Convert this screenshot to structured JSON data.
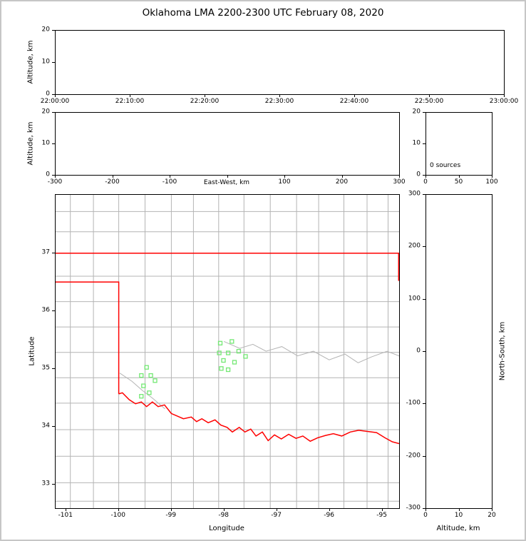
{
  "chart_data": {
    "type": "scatter",
    "title": "Oklahoma LMA 2200-2300 UTC February 08, 2020",
    "legend": "none",
    "grid": false,
    "panels": {
      "time_height": {
        "ylabel": "Altitude, km",
        "ylim": [
          0,
          20
        ],
        "yticks": [
          {
            "v": 0,
            "l": "0"
          },
          {
            "v": 10,
            "l": "10"
          },
          {
            "v": 20,
            "l": "20"
          }
        ],
        "xlim": [
          0,
          3600
        ],
        "xticks": [
          {
            "v": 0,
            "l": "22:00:00"
          },
          {
            "v": 600,
            "l": "22:10:00"
          },
          {
            "v": 1200,
            "l": "22:20:00"
          },
          {
            "v": 1800,
            "l": "22:30:00"
          },
          {
            "v": 2400,
            "l": "22:40:00"
          },
          {
            "v": 3000,
            "l": "22:50:00"
          },
          {
            "v": 3600,
            "l": "23:00:00"
          }
        ],
        "points": []
      },
      "ew_height": {
        "ylabel": "Altitude, km",
        "ylim": [
          0,
          20
        ],
        "yticks": [
          {
            "v": 0,
            "l": "0"
          },
          {
            "v": 10,
            "l": "10"
          },
          {
            "v": 20,
            "l": "20"
          }
        ],
        "xlabel": "East-West, km",
        "xlim": [
          -300,
          300
        ],
        "xticks": [
          {
            "v": -300,
            "l": "-300"
          },
          {
            "v": -200,
            "l": "-200"
          },
          {
            "v": -100,
            "l": "-100"
          },
          {
            "v": 0,
            "l": ""
          },
          {
            "v": 100,
            "l": "100"
          },
          {
            "v": 200,
            "l": "200"
          },
          {
            "v": 300,
            "l": "300"
          }
        ],
        "points": []
      },
      "sources": {
        "annotation": "0 sources",
        "xlim": [
          0,
          100
        ],
        "xticks": [
          {
            "v": 0,
            "l": "0"
          },
          {
            "v": 50,
            "l": "50"
          },
          {
            "v": 100,
            "l": "100"
          }
        ],
        "ylim": [
          0,
          20
        ],
        "yticks": [
          {
            "v": 0,
            "l": "0"
          },
          {
            "v": 10,
            "l": "10"
          },
          {
            "v": 20,
            "l": "20"
          }
        ],
        "points": []
      },
      "map": {
        "xlabel": "Longitude",
        "ylabel": "Latitude",
        "xlim": [
          -101.2,
          -94.67
        ],
        "ylim": [
          32.58,
          38.01
        ],
        "xticks": [
          {
            "v": -101,
            "l": "-101"
          },
          {
            "v": -100,
            "l": "-100"
          },
          {
            "v": -99,
            "l": "-99"
          },
          {
            "v": -98,
            "l": "-98"
          },
          {
            "v": -97,
            "l": "-97"
          },
          {
            "v": -96,
            "l": "-96"
          },
          {
            "v": -95,
            "l": "-95"
          }
        ],
        "yticks": [
          {
            "v": 33,
            "l": "33"
          },
          {
            "v": 34,
            "l": "34"
          },
          {
            "v": 35,
            "l": "35"
          },
          {
            "v": 36,
            "l": "36"
          },
          {
            "v": 37,
            "l": "37"
          }
        ],
        "county_color": "#b4b4b4",
        "state_border_color": "#ff0000",
        "station_color": "#74e874",
        "county_lon_lines": [
          -100.92,
          -100.48,
          -100.0,
          -99.5,
          -99.0,
          -98.58,
          -98.1,
          -97.62,
          -97.12,
          -96.62,
          -96.2,
          -95.72,
          -95.28,
          -94.88
        ],
        "county_lat_lines": [
          37.72,
          37.37,
          36.6,
          36.16,
          35.72,
          35.28,
          34.84,
          34.4,
          33.94,
          33.48,
          33.02,
          32.7
        ],
        "gray_polylines": [
          [
            [
              -98.0,
              35.47
            ],
            [
              -97.7,
              35.35
            ],
            [
              -97.45,
              35.42
            ],
            [
              -97.2,
              35.3
            ],
            [
              -96.9,
              35.38
            ],
            [
              -96.6,
              35.22
            ],
            [
              -96.3,
              35.3
            ],
            [
              -96.0,
              35.15
            ],
            [
              -95.7,
              35.25
            ],
            [
              -95.45,
              35.1
            ],
            [
              -95.2,
              35.2
            ],
            [
              -94.9,
              35.3
            ],
            [
              -94.67,
              35.22
            ]
          ],
          [
            [
              -99.98,
              34.92
            ],
            [
              -99.75,
              34.78
            ],
            [
              -99.55,
              34.62
            ],
            [
              -99.35,
              34.48
            ],
            [
              -99.12,
              34.3
            ]
          ]
        ],
        "border_polylines": [
          [
            [
              -101.2,
              37.0
            ],
            [
              -94.67,
              37.0
            ]
          ],
          [
            [
              -101.2,
              36.5
            ],
            [
              -100.0,
              36.5
            ],
            [
              -100.0,
              34.56
            ]
          ],
          [
            [
              -94.68,
              37.0
            ],
            [
              -94.68,
              36.52
            ]
          ],
          [
            [
              -100.0,
              34.56
            ],
            [
              -99.93,
              34.58
            ],
            [
              -99.8,
              34.46
            ],
            [
              -99.68,
              34.39
            ],
            [
              -99.57,
              34.42
            ],
            [
              -99.47,
              34.34
            ],
            [
              -99.36,
              34.42
            ],
            [
              -99.25,
              34.34
            ],
            [
              -99.13,
              34.37
            ],
            [
              -99.0,
              34.22
            ],
            [
              -98.9,
              34.18
            ],
            [
              -98.77,
              34.13
            ],
            [
              -98.62,
              34.16
            ],
            [
              -98.52,
              34.08
            ],
            [
              -98.42,
              34.13
            ],
            [
              -98.3,
              34.06
            ],
            [
              -98.17,
              34.11
            ],
            [
              -98.06,
              34.02
            ],
            [
              -97.94,
              33.98
            ],
            [
              -97.84,
              33.9
            ],
            [
              -97.71,
              33.98
            ],
            [
              -97.6,
              33.9
            ],
            [
              -97.49,
              33.95
            ],
            [
              -97.39,
              33.83
            ],
            [
              -97.27,
              33.9
            ],
            [
              -97.16,
              33.75
            ],
            [
              -97.04,
              33.85
            ],
            [
              -96.91,
              33.78
            ],
            [
              -96.77,
              33.86
            ],
            [
              -96.63,
              33.79
            ],
            [
              -96.5,
              33.83
            ],
            [
              -96.36,
              33.74
            ],
            [
              -96.22,
              33.8
            ],
            [
              -96.07,
              33.84
            ],
            [
              -95.92,
              33.87
            ],
            [
              -95.76,
              33.83
            ],
            [
              -95.6,
              33.9
            ],
            [
              -95.44,
              33.93
            ],
            [
              -95.27,
              33.91
            ],
            [
              -95.1,
              33.89
            ],
            [
              -94.94,
              33.8
            ],
            [
              -94.8,
              33.73
            ],
            [
              -94.67,
              33.7
            ]
          ]
        ],
        "stations": [
          [
            -98.07,
            35.44
          ],
          [
            -97.85,
            35.47
          ],
          [
            -98.09,
            35.27
          ],
          [
            -97.92,
            35.27
          ],
          [
            -97.72,
            35.3
          ],
          [
            -98.01,
            35.14
          ],
          [
            -97.8,
            35.11
          ],
          [
            -97.59,
            35.21
          ],
          [
            -98.05,
            35.0
          ],
          [
            -97.92,
            34.98
          ],
          [
            -99.47,
            35.02
          ],
          [
            -99.57,
            34.88
          ],
          [
            -99.39,
            34.88
          ],
          [
            -99.31,
            34.79
          ],
          [
            -99.53,
            34.7
          ],
          [
            -99.42,
            34.58
          ],
          [
            -99.57,
            34.52
          ]
        ],
        "points": []
      },
      "ns_height": {
        "xlabel": "Altitude, km",
        "ylabel": "North-South, km",
        "xlim": [
          0,
          20
        ],
        "xticks": [
          {
            "v": 0,
            "l": "0"
          },
          {
            "v": 10,
            "l": "10"
          },
          {
            "v": 20,
            "l": "20"
          }
        ],
        "ylim": [
          -300,
          300
        ],
        "yticks": [
          {
            "v": 300,
            "l": "300"
          },
          {
            "v": 200,
            "l": "200"
          },
          {
            "v": 100,
            "l": "100"
          },
          {
            "v": 0,
            "l": "0"
          },
          {
            "v": -100,
            "l": "-100"
          },
          {
            "v": -200,
            "l": "-200"
          },
          {
            "v": -300,
            "l": "-300"
          }
        ],
        "points": []
      }
    }
  }
}
